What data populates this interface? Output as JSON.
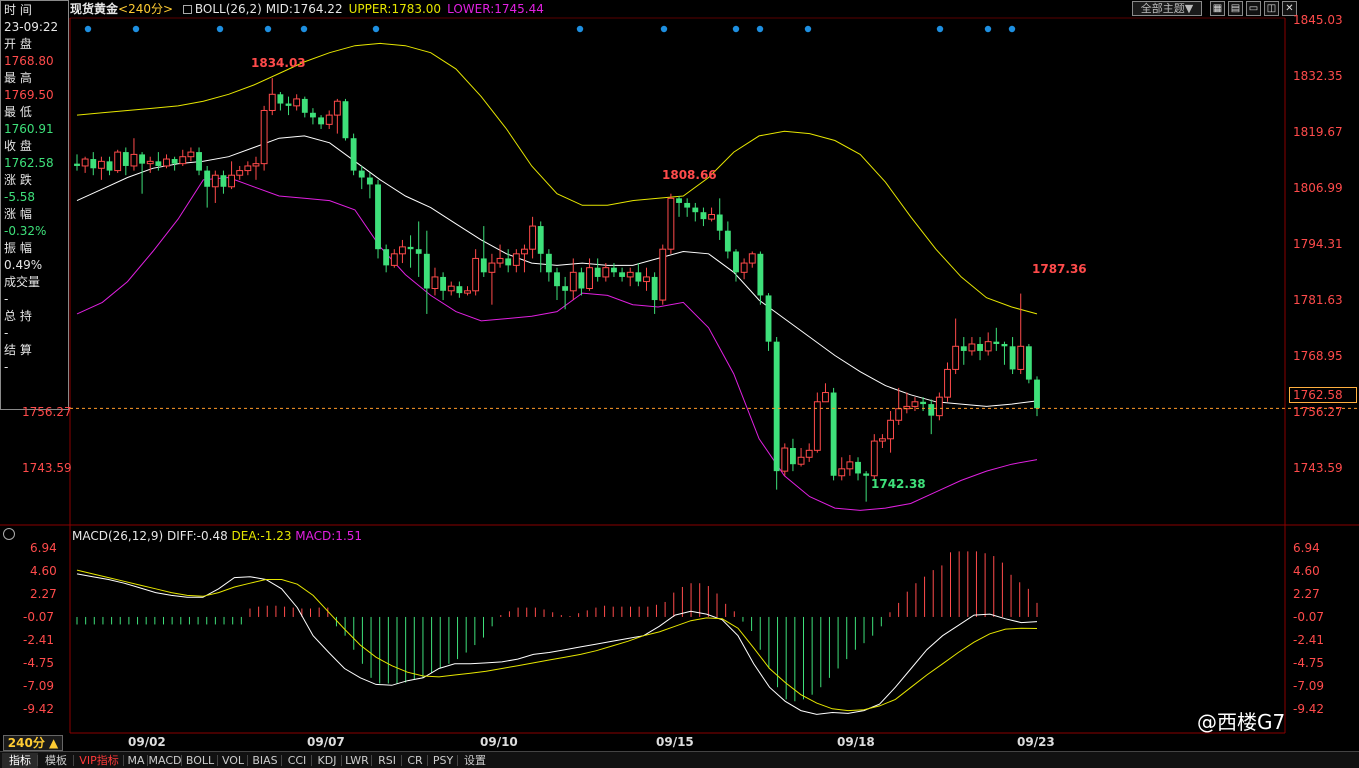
{
  "side_panel": {
    "time_label": "时 间",
    "time_value": "23-09:22",
    "open_label": "开 盘",
    "open_value": "1768.80",
    "high_label": "最 高",
    "high_value": "1769.50",
    "low_label": "最 低",
    "low_value": "1760.91",
    "close_label": "收 盘",
    "close_value": "1762.58",
    "change_label": "涨 跌",
    "change_value": "-5.58",
    "pct_label": "涨 幅",
    "pct_value": "-0.32%",
    "amp_label": "振 幅",
    "amp_value": "0.49%",
    "vol_label": "成交量",
    "vol_value": "-",
    "oi_label": "总 持",
    "oi_value": "-",
    "settle_label": "结 算",
    "settle_value": "-"
  },
  "header": {
    "symbol": "现货黄金",
    "period": "<240分>",
    "boll_name": "BOLL(26,2)",
    "mid": "MID:1764.22",
    "upper": "UPPER:1783.00",
    "lower": "LOWER:1745.44",
    "theme_select": "全部主题▼"
  },
  "macd_header": {
    "name": "MACD(26,12,9)",
    "diff": "DIFF:-0.48",
    "dea": "DEA:-1.23",
    "macd": "MACD:1.51"
  },
  "price_axis": [
    "1845.03",
    "1832.35",
    "1819.67",
    "1806.99",
    "1794.31",
    "1781.63",
    "1768.95",
    "1756.27",
    "1743.59"
  ],
  "left_axis": [
    "1756.27",
    "1743.59"
  ],
  "current_price": "1762.58",
  "macd_axis": [
    "6.94",
    "4.60",
    "2.27",
    "-0.07",
    "-2.41",
    "-4.75",
    "-7.09",
    "-9.42"
  ],
  "date_labels": [
    "09/02",
    "09/07",
    "09/10",
    "09/15",
    "09/18",
    "09/23"
  ],
  "peaks": {
    "p1": "1834.03",
    "p2": "1808.66",
    "p3": "1787.36",
    "low": "1742.38"
  },
  "period_button": "240分 ▲",
  "bottom_tabs": [
    "指标",
    "模板",
    "VIP指标",
    "MA",
    "MACD",
    "BOLL",
    "VOL",
    "BIAS",
    "CCI",
    "KDJ",
    "LWR",
    "RSI",
    "CR",
    "PSY",
    "设置"
  ],
  "watermark": "@西楼G7",
  "colors": {
    "up": "#ff4b4b",
    "down": "#3ee07a",
    "upper": "#e6e600",
    "mid": "#ffffff",
    "lower": "#e020e0",
    "dea": "#e6e600"
  },
  "chart_data": {
    "type": "candlestick",
    "title": "现货黄金 <240分>",
    "ylim": [
      1738,
      1847
    ],
    "candles": [
      [
        1815.5,
        1815.0,
        1817.5,
        1814.0
      ],
      [
        1815.0,
        1816.5,
        1817.0,
        1813.5
      ],
      [
        1816.5,
        1814.5,
        1818.0,
        1813.0
      ],
      [
        1814.5,
        1816.0,
        1817.0,
        1812.0
      ],
      [
        1816.0,
        1814.0,
        1817.0,
        1813.0
      ],
      [
        1814.0,
        1818.0,
        1818.5,
        1813.5
      ],
      [
        1818.0,
        1815.0,
        1819.0,
        1813.0
      ],
      [
        1815.0,
        1817.5,
        1821.0,
        1814.0
      ],
      [
        1817.5,
        1815.5,
        1818.0,
        1809.0
      ],
      [
        1815.5,
        1816.0,
        1817.0,
        1813.5
      ],
      [
        1816.0,
        1815.0,
        1818.0,
        1814.0
      ],
      [
        1815.0,
        1816.5,
        1817.5,
        1814.5
      ],
      [
        1816.5,
        1815.5,
        1817.0,
        1814.0
      ],
      [
        1815.5,
        1817.0,
        1818.5,
        1815.0
      ],
      [
        1817.0,
        1818.0,
        1819.0,
        1816.0
      ],
      [
        1818.0,
        1814.0,
        1819.0,
        1813.0
      ],
      [
        1814.0,
        1810.5,
        1815.0,
        1806.0
      ],
      [
        1810.5,
        1813.0,
        1814.0,
        1807.0
      ],
      [
        1813.0,
        1810.5,
        1814.0,
        1809.0
      ],
      [
        1810.5,
        1813.0,
        1816.0,
        1810.0
      ],
      [
        1813.0,
        1814.0,
        1815.0,
        1812.0
      ],
      [
        1814.0,
        1815.0,
        1816.0,
        1813.0
      ],
      [
        1815.0,
        1815.5,
        1817.0,
        1812.0
      ],
      [
        1815.5,
        1827.0,
        1828.0,
        1814.0
      ],
      [
        1827.0,
        1830.5,
        1834.0,
        1826.0
      ],
      [
        1830.5,
        1828.5,
        1831.0,
        1827.0
      ],
      [
        1828.5,
        1828.0,
        1830.0,
        1826.0
      ],
      [
        1828.0,
        1829.5,
        1830.5,
        1827.0
      ],
      [
        1829.5,
        1826.5,
        1830.0,
        1825.5
      ],
      [
        1826.5,
        1825.5,
        1827.5,
        1824.0
      ],
      [
        1825.5,
        1824.0,
        1826.0,
        1823.0
      ],
      [
        1824.0,
        1826.0,
        1827.0,
        1823.0
      ],
      [
        1826.0,
        1829.0,
        1829.5,
        1822.0
      ],
      [
        1829.0,
        1821.0,
        1829.5,
        1820.5
      ],
      [
        1821.0,
        1814.0,
        1822.0,
        1813.0
      ],
      [
        1814.0,
        1812.5,
        1815.0,
        1810.0
      ],
      [
        1812.5,
        1811.0,
        1813.5,
        1808.0
      ],
      [
        1811.0,
        1797.0,
        1812.0,
        1795.0
      ],
      [
        1797.0,
        1793.5,
        1798.0,
        1792.0
      ],
      [
        1793.5,
        1796.0,
        1797.0,
        1793.0
      ],
      [
        1796.0,
        1797.5,
        1799.0,
        1794.0
      ],
      [
        1797.5,
        1797.0,
        1800.0,
        1793.0
      ],
      [
        1797.0,
        1796.0,
        1803.0,
        1791.0
      ],
      [
        1796.0,
        1788.5,
        1801.0,
        1783.0
      ],
      [
        1788.5,
        1791.0,
        1793.0,
        1787.0
      ],
      [
        1791.0,
        1788.0,
        1792.0,
        1786.0
      ],
      [
        1788.0,
        1789.0,
        1790.0,
        1787.0
      ],
      [
        1789.0,
        1787.5,
        1790.0,
        1786.5
      ],
      [
        1787.5,
        1788.0,
        1789.0,
        1787.0
      ],
      [
        1788.0,
        1795.0,
        1797.0,
        1787.0
      ],
      [
        1795.0,
        1792.0,
        1802.0,
        1791.0
      ],
      [
        1792.0,
        1794.0,
        1796.0,
        1785.0
      ],
      [
        1794.0,
        1795.0,
        1798.0,
        1793.0
      ],
      [
        1795.0,
        1793.5,
        1797.0,
        1792.0
      ],
      [
        1793.5,
        1796.0,
        1797.0,
        1792.0
      ],
      [
        1796.0,
        1797.0,
        1798.0,
        1792.0
      ],
      [
        1797.0,
        1802.0,
        1804.0,
        1795.0
      ],
      [
        1802.0,
        1796.0,
        1803.0,
        1792.0
      ],
      [
        1796.0,
        1792.0,
        1797.0,
        1790.0
      ],
      [
        1792.0,
        1789.0,
        1793.0,
        1786.0
      ],
      [
        1789.0,
        1788.0,
        1791.0,
        1784.0
      ],
      [
        1788.0,
        1792.0,
        1795.0,
        1786.0
      ],
      [
        1792.0,
        1788.5,
        1793.0,
        1787.0
      ],
      [
        1788.5,
        1793.0,
        1795.0,
        1788.0
      ],
      [
        1793.0,
        1791.0,
        1795.0,
        1790.0
      ],
      [
        1791.0,
        1793.0,
        1794.0,
        1790.0
      ],
      [
        1793.0,
        1792.0,
        1794.0,
        1791.0
      ],
      [
        1792.0,
        1791.0,
        1793.0,
        1790.0
      ],
      [
        1791.0,
        1792.0,
        1793.0,
        1789.0
      ],
      [
        1792.0,
        1790.0,
        1794.0,
        1789.0
      ],
      [
        1790.0,
        1791.0,
        1793.0,
        1788.0
      ],
      [
        1791.0,
        1786.0,
        1792.0,
        1783.0
      ],
      [
        1786.0,
        1797.0,
        1798.0,
        1785.0
      ],
      [
        1797.0,
        1808.0,
        1809.0,
        1796.0
      ],
      [
        1808.0,
        1807.0,
        1808.5,
        1804.0
      ],
      [
        1807.0,
        1806.0,
        1808.0,
        1804.0
      ],
      [
        1806.0,
        1805.0,
        1807.0,
        1803.0
      ],
      [
        1805.0,
        1803.5,
        1806.0,
        1802.0
      ],
      [
        1803.5,
        1804.5,
        1806.0,
        1803.0
      ],
      [
        1804.5,
        1801.0,
        1808.0,
        1799.0
      ],
      [
        1801.0,
        1796.5,
        1803.0,
        1795.0
      ],
      [
        1796.5,
        1792.0,
        1797.0,
        1790.0
      ],
      [
        1792.0,
        1794.0,
        1795.0,
        1790.5
      ],
      [
        1794.0,
        1796.0,
        1796.5,
        1793.0
      ],
      [
        1796.0,
        1787.0,
        1796.5,
        1785.0
      ],
      [
        1787.0,
        1777.0,
        1787.5,
        1775.0
      ],
      [
        1777.0,
        1749.0,
        1778.0,
        1745.0
      ],
      [
        1749.0,
        1754.0,
        1755.0,
        1748.0
      ],
      [
        1754.0,
        1750.5,
        1756.0,
        1749.0
      ],
      [
        1750.5,
        1752.0,
        1754.0,
        1750.0
      ],
      [
        1752.0,
        1753.5,
        1755.0,
        1751.0
      ],
      [
        1753.5,
        1764.0,
        1766.0,
        1753.0
      ],
      [
        1764.0,
        1766.0,
        1768.0,
        1764.0
      ],
      [
        1766.0,
        1748.0,
        1767.0,
        1747.0
      ],
      [
        1748.0,
        1749.5,
        1752.0,
        1747.0
      ],
      [
        1749.5,
        1751.0,
        1752.5,
        1748.0
      ],
      [
        1751.0,
        1748.5,
        1752.0,
        1747.0
      ],
      [
        1748.5,
        1748.0,
        1749.0,
        1742.4
      ],
      [
        1748.0,
        1755.5,
        1757.0,
        1747.0
      ],
      [
        1755.5,
        1756.0,
        1757.0,
        1754.0
      ],
      [
        1756.0,
        1760.0,
        1762.0,
        1753.0
      ],
      [
        1760.0,
        1762.5,
        1767.0,
        1759.0
      ],
      [
        1762.5,
        1763.0,
        1766.0,
        1761.5
      ],
      [
        1763.0,
        1764.0,
        1765.0,
        1762.0
      ],
      [
        1764.0,
        1763.5,
        1765.0,
        1762.0
      ],
      [
        1763.5,
        1761.0,
        1764.5,
        1757.0
      ],
      [
        1761.0,
        1765.0,
        1766.0,
        1760.0
      ],
      [
        1765.0,
        1771.0,
        1772.5,
        1764.0
      ],
      [
        1771.0,
        1776.0,
        1782.0,
        1770.0
      ],
      [
        1776.0,
        1775.0,
        1778.0,
        1772.0
      ],
      [
        1775.0,
        1776.5,
        1778.0,
        1774.0
      ],
      [
        1776.5,
        1775.0,
        1778.0,
        1773.0
      ],
      [
        1775.0,
        1777.0,
        1779.0,
        1774.0
      ],
      [
        1777.0,
        1776.5,
        1780.0,
        1775.0
      ],
      [
        1776.5,
        1776.0,
        1777.0,
        1772.0
      ],
      [
        1776.0,
        1771.0,
        1778.0,
        1770.0
      ],
      [
        1771.0,
        1776.0,
        1787.4,
        1770.0
      ],
      [
        1776.0,
        1768.8,
        1776.5,
        1768.0
      ],
      [
        1768.8,
        1762.6,
        1769.5,
        1760.9
      ]
    ],
    "upper_band": [
      1826.0,
      1826.5,
      1827.0,
      1827.5,
      1828.0,
      1829.0,
      1830.5,
      1832.5,
      1835.0,
      1837.5,
      1839.5,
      1841.0,
      1841.5,
      1841.0,
      1839.5,
      1836.0,
      1830.0,
      1823.0,
      1815.0,
      1809.0,
      1806.5,
      1806.5,
      1807.5,
      1808.0,
      1808.5,
      1812.5,
      1818.0,
      1821.5,
      1822.5,
      1822.0,
      1820.5,
      1817.5,
      1811.5,
      1804.0,
      1797.0,
      1791.0,
      1786.5,
      1784.5,
      1783.0
    ],
    "mid_band": [
      1807.5,
      1810.0,
      1812.5,
      1814.5,
      1815.5,
      1816.0,
      1817.0,
      1819.0,
      1821.0,
      1821.5,
      1820.0,
      1816.0,
      1812.0,
      1808.5,
      1806.0,
      1802.5,
      1799.0,
      1796.0,
      1794.0,
      1793.5,
      1794.0,
      1793.5,
      1793.5,
      1795.0,
      1796.5,
      1796.0,
      1792.0,
      1786.0,
      1782.0,
      1778.0,
      1774.0,
      1770.5,
      1767.5,
      1765.5,
      1764.0,
      1763.5,
      1763.0,
      1763.5,
      1764.2
    ],
    "lower_band": [
      1783.0,
      1785.5,
      1790.0,
      1796.5,
      1803.5,
      1812.0,
      1812.5,
      1810.5,
      1808.5,
      1808.0,
      1807.5,
      1805.5,
      1797.5,
      1791.5,
      1787.0,
      1783.5,
      1781.5,
      1782.0,
      1782.5,
      1783.5,
      1787.5,
      1787.0,
      1785.0,
      1784.5,
      1785.5,
      1780.0,
      1770.0,
      1756.0,
      1748.0,
      1743.5,
      1741.0,
      1740.5,
      1741.0,
      1742.0,
      1744.5,
      1747.0,
      1749.0,
      1750.5,
      1751.5
    ],
    "macd_ylim": [
      -11.0,
      8.0
    ],
    "macd_hist": [
      -0.8,
      -0.8,
      -0.8,
      -0.8,
      -0.8,
      -0.8,
      -0.8,
      -0.8,
      -0.8,
      -0.8,
      -0.8,
      -0.8,
      -0.8,
      -0.8,
      -0.8,
      -0.8,
      -0.8,
      -0.8,
      -0.8,
      -0.8,
      0.9,
      1.1,
      1.2,
      1.2,
      1.1,
      1.0,
      0.9,
      0.9,
      1.0,
      1.0,
      -1.0,
      -2.0,
      -3.5,
      -5.0,
      -6.5,
      -7.1,
      -7.1,
      -7.1,
      -7.0,
      -6.7,
      -6.5,
      -6.0,
      -5.5,
      -5.0,
      -4.5,
      -3.8,
      -3.0,
      -2.2,
      -1.0,
      0.2,
      0.6,
      1.0,
      1.0,
      1.0,
      0.8,
      0.5,
      0.2,
      0.1,
      0.4,
      0.7,
      1.0,
      1.2,
      1.1,
      1.1,
      1.1,
      1.1,
      1.1,
      1.3,
      1.6,
      2.6,
      3.2,
      3.6,
      3.6,
      3.3,
      2.5,
      1.4,
      0.6,
      -0.5,
      -1.5,
      -3.5,
      -5.5,
      -7.5,
      -8.8,
      -9.0,
      -8.8,
      -8.3,
      -7.5,
      -6.5,
      -5.5,
      -4.5,
      -3.5,
      -2.8,
      -2.0,
      -1.0,
      0.5,
      1.5,
      2.7,
      3.6,
      4.3,
      5.0,
      5.5,
      6.9,
      7.0,
      7.0,
      7.0,
      6.8,
      6.5,
      5.8,
      4.5,
      3.7,
      3.0,
      1.5
    ],
    "diff_line": [
      4.6,
      4.3,
      4.0,
      3.6,
      3.1,
      2.6,
      2.3,
      2.1,
      2.1,
      3.0,
      4.2,
      4.3,
      4.0,
      3.0,
      1.0,
      -2.0,
      -3.8,
      -5.5,
      -6.5,
      -7.2,
      -7.3,
      -6.8,
      -6.5,
      -5.5,
      -5.0,
      -5.0,
      -4.9,
      -4.8,
      -4.5,
      -4.0,
      -3.8,
      -3.5,
      -3.2,
      -2.9,
      -2.6,
      -2.3,
      -2.0,
      -1.0,
      0.2,
      0.6,
      0.3,
      -0.3,
      -2.0,
      -5.0,
      -7.5,
      -9.0,
      -10.0,
      -10.4,
      -10.2,
      -10.3,
      -10.0,
      -9.3,
      -7.5,
      -5.5,
      -3.5,
      -2.0,
      -0.9,
      0.2,
      0.3,
      -0.2,
      -0.6,
      -0.5
    ],
    "dea_line": [
      5.0,
      4.6,
      4.2,
      3.8,
      3.4,
      3.0,
      2.6,
      2.3,
      2.2,
      2.6,
      3.2,
      3.6,
      4.0,
      4.0,
      3.5,
      2.3,
      0.5,
      -1.3,
      -3.0,
      -4.3,
      -5.2,
      -5.9,
      -6.3,
      -6.4,
      -6.2,
      -6.0,
      -5.8,
      -5.5,
      -5.2,
      -4.9,
      -4.6,
      -4.3,
      -4.0,
      -3.6,
      -3.1,
      -2.6,
      -2.0,
      -1.6,
      -1.0,
      -0.4,
      -0.1,
      -0.2,
      -1.2,
      -3.3,
      -5.5,
      -7.0,
      -8.3,
      -9.2,
      -9.8,
      -10.0,
      -9.9,
      -9.5,
      -8.8,
      -7.5,
      -6.2,
      -5.0,
      -3.8,
      -2.7,
      -1.8,
      -1.3,
      -1.2,
      -1.23
    ],
    "markers": [
      0,
      4,
      11,
      15,
      18,
      24,
      41,
      48,
      54,
      56,
      60,
      71,
      75,
      77
    ]
  }
}
